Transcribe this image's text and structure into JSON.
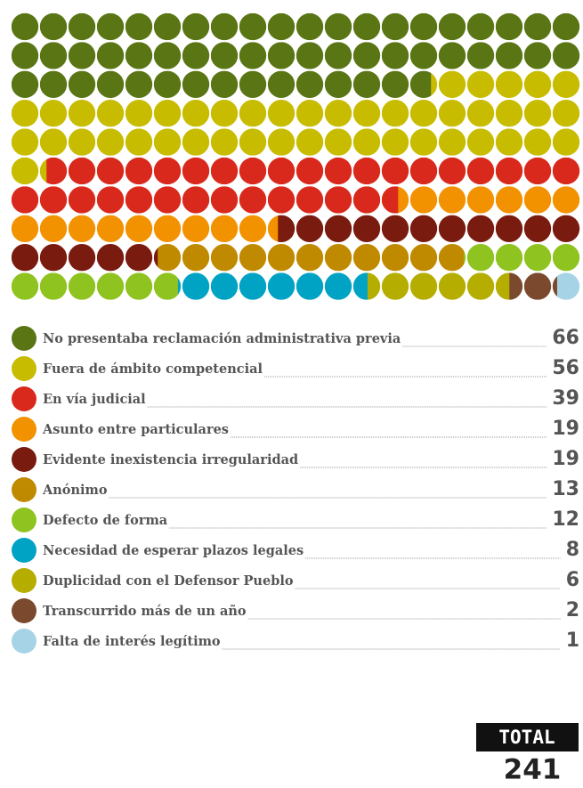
{
  "chart_data": {
    "type": "waffle",
    "categories": [
      "No presentaba reclamación administrativa previa",
      "Fuera de ámbito competencial",
      "En vía judicial",
      "Asunto entre particulares",
      "Evidente inexistencia irregularidad",
      "Anónimo",
      "Defecto de forma",
      "Necesidad de esperar plazos legales",
      "Duplicidad con el Defensor Pueblo",
      "Transcurrido más de un año",
      "Falta de interés legítimo"
    ],
    "values": [
      66,
      56,
      39,
      19,
      19,
      13,
      12,
      8,
      6,
      2,
      1
    ],
    "colors": [
      "#5a7514",
      "#c8bc00",
      "#d9291c",
      "#f39200",
      "#7a1b0f",
      "#c08a00",
      "#8fc31f",
      "#00a3c4",
      "#b5ad00",
      "#7b4a2e",
      "#a6d4e6"
    ],
    "total_label": "TOTAL",
    "total": 241
  }
}
